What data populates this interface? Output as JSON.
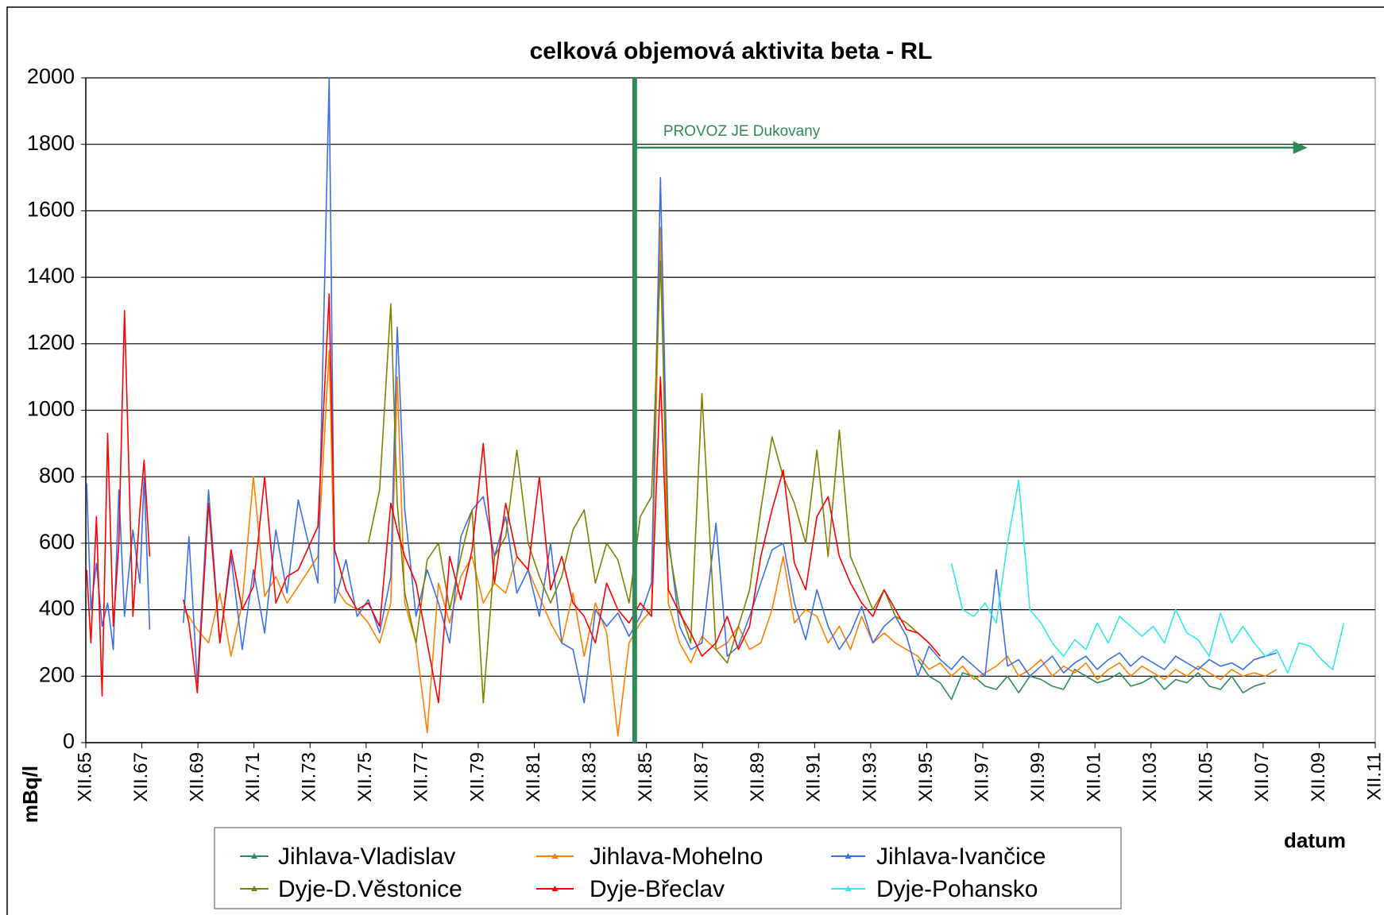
{
  "chart_data": {
    "type": "line",
    "title": "celková objemová aktivita beta - RL",
    "ylabel": "mBq/l",
    "xlabel": "datum",
    "annotation": {
      "text": "PROVOZ JE Dukovany",
      "x": 1985.5,
      "x_end": 2009.5,
      "y": 1790,
      "color": "#2e8b57"
    },
    "xlim": [
      1965.92,
      2011.92
    ],
    "xticks": [
      {
        "value": 1965.92,
        "label": "XII.65"
      },
      {
        "value": 1967.92,
        "label": "XII.67"
      },
      {
        "value": 1969.92,
        "label": "XII.69"
      },
      {
        "value": 1971.92,
        "label": "XII.71"
      },
      {
        "value": 1973.92,
        "label": "XII.73"
      },
      {
        "value": 1975.92,
        "label": "XII.75"
      },
      {
        "value": 1977.92,
        "label": "XII.77"
      },
      {
        "value": 1979.92,
        "label": "XII.79"
      },
      {
        "value": 1981.92,
        "label": "XII.81"
      },
      {
        "value": 1983.92,
        "label": "XII.83"
      },
      {
        "value": 1985.92,
        "label": "XII.85"
      },
      {
        "value": 1987.92,
        "label": "XII.87"
      },
      {
        "value": 1989.92,
        "label": "XII.89"
      },
      {
        "value": 1991.92,
        "label": "XII.91"
      },
      {
        "value": 1993.92,
        "label": "XII.93"
      },
      {
        "value": 1995.92,
        "label": "XII.95"
      },
      {
        "value": 1997.92,
        "label": "XII.97"
      },
      {
        "value": 1999.92,
        "label": "XII.99"
      },
      {
        "value": 2001.92,
        "label": "XII.01"
      },
      {
        "value": 2003.92,
        "label": "XII.03"
      },
      {
        "value": 2005.92,
        "label": "XII.05"
      },
      {
        "value": 2007.92,
        "label": "XII.07"
      },
      {
        "value": 2009.92,
        "label": "XII.09"
      },
      {
        "value": 2011.92,
        "label": "XII.11"
      }
    ],
    "ylim": [
      0,
      2000
    ],
    "yticks": [
      0,
      200,
      400,
      600,
      800,
      1000,
      1200,
      1400,
      1600,
      1800,
      2000
    ],
    "grid": true,
    "x": [
      1965.95,
      1966.1,
      1966.3,
      1966.5,
      1966.7,
      1966.9,
      1967.1,
      1967.3,
      1967.6,
      1967.85,
      1968.0,
      1968.2,
      1968.6,
      1969.4,
      1969.6,
      1969.9,
      1970.3,
      1970.7,
      1971.1,
      1971.5,
      1971.9,
      1972.3,
      1972.7,
      1973.1,
      1973.5,
      1974.2,
      1974.6,
      1974.8,
      1975.2,
      1975.6,
      1976.0,
      1976.4,
      1976.8,
      1977.03,
      1977.3,
      1977.7,
      1978.1,
      1978.5,
      1978.9,
      1979.3,
      1979.7,
      1980.1,
      1980.5,
      1980.9,
      1981.3,
      1981.7,
      1982.1,
      1982.5,
      1982.9,
      1983.3,
      1983.7,
      1984.1,
      1984.5,
      1984.9,
      1985.3,
      1985.7,
      1986.1,
      1986.42,
      1986.7,
      1987.1,
      1987.5,
      1987.9,
      1988.4,
      1988.8,
      1989.2,
      1989.6,
      1990.0,
      1990.4,
      1990.8,
      1991.2,
      1991.6,
      1992.0,
      1992.4,
      1992.8,
      1993.2,
      1993.6,
      1994.0,
      1994.4,
      1994.8,
      1995.2,
      1995.6,
      1996.0,
      1996.4,
      1996.8,
      1997.2,
      1997.6,
      1998.0,
      1998.4,
      1998.8,
      1999.2,
      1999.6,
      2000.0,
      2000.4,
      2000.8,
      2001.2,
      2001.6,
      2002.0,
      2002.4,
      2002.8,
      2003.2,
      2003.6,
      2004.0,
      2004.4,
      2004.8,
      2005.2,
      2005.6,
      2006.0,
      2006.4,
      2006.8,
      2007.2,
      2007.6,
      2008.0,
      2008.4,
      2008.8,
      2009.2,
      2009.6,
      2010.0,
      2010.4,
      2010.8
    ],
    "series": [
      {
        "name": "Jihlava-Vladislav",
        "color": "#2e8b57",
        "values": [
          null,
          null,
          null,
          null,
          null,
          null,
          null,
          null,
          null,
          null,
          null,
          null,
          null,
          null,
          null,
          null,
          null,
          null,
          null,
          null,
          null,
          null,
          null,
          null,
          null,
          null,
          null,
          null,
          null,
          null,
          null,
          null,
          null,
          null,
          null,
          null,
          null,
          null,
          null,
          null,
          null,
          null,
          null,
          null,
          null,
          null,
          null,
          null,
          null,
          null,
          null,
          null,
          null,
          null,
          null,
          null,
          null,
          null,
          null,
          null,
          null,
          null,
          null,
          null,
          null,
          null,
          null,
          null,
          null,
          null,
          null,
          null,
          null,
          null,
          null,
          null,
          null,
          null,
          null,
          null,
          250,
          200,
          180,
          130,
          210,
          200,
          170,
          160,
          200,
          150,
          200,
          190,
          170,
          160,
          220,
          200,
          180,
          190,
          210,
          170,
          180,
          200,
          160,
          190,
          180,
          210,
          170,
          160,
          200,
          150,
          170,
          180,
          null,
          null,
          null,
          null,
          null,
          null,
          null
        ]
      },
      {
        "name": "Jihlava-Mohelno",
        "color": "#ff8000",
        "values": [
          null,
          null,
          null,
          null,
          null,
          null,
          null,
          null,
          null,
          null,
          null,
          null,
          null,
          400,
          380,
          340,
          300,
          450,
          260,
          420,
          800,
          440,
          500,
          420,
          470,
          560,
          1180,
          470,
          420,
          400,
          360,
          300,
          420,
          1100,
          420,
          300,
          30,
          480,
          360,
          500,
          560,
          420,
          480,
          450,
          560,
          520,
          440,
          360,
          300,
          450,
          260,
          420,
          330,
          20,
          300,
          360,
          400,
          1550,
          420,
          300,
          240,
          320,
          280,
          300,
          350,
          280,
          300,
          400,
          560,
          360,
          400,
          380,
          300,
          350,
          280,
          380,
          300,
          330,
          300,
          280,
          260,
          220,
          240,
          200,
          230,
          190,
          210,
          230,
          260,
          200,
          220,
          250,
          200,
          230,
          210,
          240,
          190,
          220,
          240,
          200,
          230,
          210,
          190,
          220,
          200,
          230,
          210,
          190,
          220,
          200,
          210,
          200,
          220,
          null,
          null,
          null,
          null,
          null,
          null
        ]
      },
      {
        "name": "Jihlava-Ivančice",
        "color": "#3b6fe8",
        "values": [
          780,
          400,
          540,
          350,
          420,
          280,
          760,
          380,
          640,
          480,
          800,
          340,
          null,
          360,
          620,
          180,
          760,
          300,
          560,
          280,
          520,
          330,
          640,
          450,
          730,
          480,
          2000,
          420,
          550,
          380,
          430,
          330,
          500,
          1250,
          700,
          380,
          520,
          420,
          300,
          620,
          700,
          740,
          560,
          680,
          450,
          520,
          380,
          600,
          300,
          280,
          120,
          400,
          350,
          390,
          320,
          380,
          480,
          1700,
          620,
          350,
          280,
          300,
          660,
          260,
          290,
          380,
          480,
          580,
          600,
          420,
          310,
          460,
          350,
          280,
          330,
          410,
          300,
          350,
          380,
          320,
          200,
          290,
          250,
          220,
          260,
          230,
          200,
          520,
          230,
          250,
          200,
          230,
          260,
          210,
          240,
          260,
          220,
          250,
          270,
          230,
          260,
          240,
          220,
          260,
          240,
          220,
          250,
          230,
          240,
          220,
          250,
          260,
          270,
          null,
          null,
          null,
          null,
          null,
          null
        ]
      },
      {
        "name": "Dyje-D.Věstonice",
        "color": "#808000",
        "values": [
          null,
          null,
          null,
          null,
          null,
          null,
          null,
          null,
          null,
          null,
          null,
          null,
          null,
          null,
          null,
          null,
          null,
          null,
          null,
          null,
          null,
          null,
          null,
          null,
          null,
          null,
          null,
          null,
          null,
          null,
          600,
          760,
          1320,
          720,
          450,
          300,
          550,
          600,
          400,
          560,
          700,
          120,
          560,
          620,
          880,
          600,
          500,
          420,
          500,
          640,
          700,
          480,
          600,
          550,
          420,
          680,
          740,
          1450,
          600,
          400,
          300,
          1050,
          280,
          240,
          350,
          460,
          700,
          920,
          800,
          720,
          600,
          880,
          560,
          940,
          560,
          480,
          400,
          460,
          380,
          360,
          330,
          300,
          null,
          null,
          null,
          null,
          null,
          null,
          null,
          null,
          null,
          null,
          null,
          null,
          null,
          null,
          null,
          null,
          null,
          null,
          null,
          null,
          null,
          null,
          null,
          null,
          null,
          null,
          null,
          null,
          null,
          null,
          null,
          null,
          null,
          null,
          null,
          null,
          null
        ]
      },
      {
        "name": "Dyje-Břeclav",
        "color": "#ff0000",
        "values": [
          520,
          300,
          680,
          140,
          930,
          350,
          600,
          1300,
          380,
          700,
          850,
          560,
          null,
          430,
          360,
          150,
          720,
          300,
          580,
          400,
          470,
          800,
          420,
          500,
          520,
          650,
          1350,
          580,
          460,
          400,
          420,
          350,
          720,
          640,
          560,
          480,
          300,
          120,
          560,
          430,
          580,
          900,
          480,
          720,
          560,
          520,
          800,
          460,
          560,
          420,
          380,
          300,
          480,
          400,
          360,
          420,
          380,
          1100,
          460,
          390,
          330,
          260,
          300,
          380,
          280,
          350,
          560,
          700,
          820,
          540,
          460,
          680,
          740,
          560,
          480,
          420,
          380,
          460,
          400,
          340,
          330,
          300,
          260,
          null,
          null,
          null,
          null,
          null,
          null,
          null,
          null,
          null,
          null,
          null,
          null,
          null,
          null,
          null,
          null,
          null,
          null,
          null,
          null,
          null,
          null,
          null,
          null,
          null,
          null,
          null,
          null,
          null,
          null,
          null,
          null,
          null,
          null,
          null,
          null
        ]
      },
      {
        "name": "Dyje-Pohansko",
        "color": "#33e8f0",
        "values": [
          null,
          null,
          null,
          null,
          null,
          null,
          null,
          null,
          null,
          null,
          null,
          null,
          null,
          null,
          null,
          null,
          null,
          null,
          null,
          null,
          null,
          null,
          null,
          null,
          null,
          null,
          null,
          null,
          null,
          null,
          null,
          null,
          null,
          null,
          null,
          null,
          null,
          null,
          null,
          null,
          null,
          null,
          null,
          null,
          null,
          null,
          null,
          null,
          null,
          null,
          null,
          null,
          null,
          null,
          null,
          null,
          null,
          null,
          null,
          null,
          null,
          null,
          null,
          null,
          null,
          null,
          null,
          null,
          null,
          null,
          null,
          null,
          null,
          null,
          null,
          null,
          null,
          null,
          null,
          null,
          null,
          null,
          null,
          540,
          400,
          380,
          420,
          360,
          600,
          790,
          400,
          360,
          300,
          260,
          310,
          280,
          360,
          300,
          380,
          350,
          320,
          350,
          300,
          400,
          330,
          310,
          260,
          390,
          300,
          350,
          300,
          260,
          280,
          210,
          300,
          290,
          250,
          220,
          360
        ]
      }
    ]
  }
}
